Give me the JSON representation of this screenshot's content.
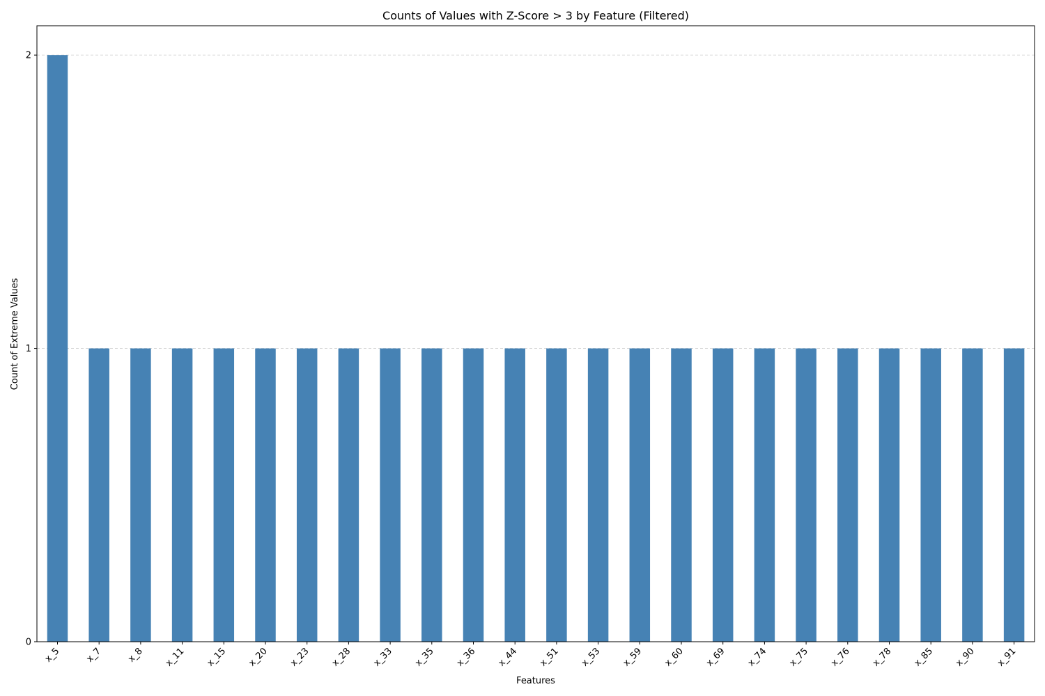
{
  "chart_data": {
    "type": "bar",
    "title": "Counts of Values with Z-Score > 3 by Feature (Filtered)",
    "xlabel": "Features",
    "ylabel": "Count of Extreme Values",
    "categories": [
      "x_5",
      "x_7",
      "x_8",
      "x_11",
      "x_15",
      "x_20",
      "x_23",
      "x_28",
      "x_33",
      "x_35",
      "x_36",
      "x_44",
      "x_51",
      "x_53",
      "x_59",
      "x_60",
      "x_69",
      "x_74",
      "x_75",
      "x_76",
      "x_78",
      "x_85",
      "x_90",
      "x_91"
    ],
    "values": [
      2,
      1,
      1,
      1,
      1,
      1,
      1,
      1,
      1,
      1,
      1,
      1,
      1,
      1,
      1,
      1,
      1,
      1,
      1,
      1,
      1,
      1,
      1,
      1
    ],
    "ylim": [
      0,
      2.1
    ],
    "yticks": [
      0,
      1,
      2
    ],
    "grid": "y-dashed",
    "colors": {
      "bar": "#4682b4",
      "grid": "#cccccc",
      "axis": "#000000"
    }
  }
}
